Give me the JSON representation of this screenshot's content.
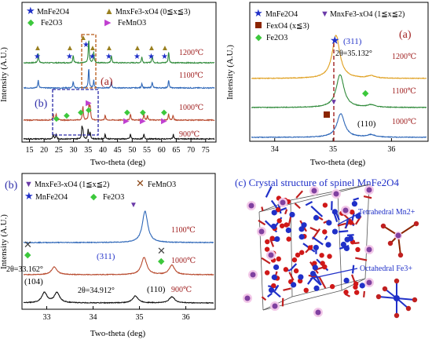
{
  "chart_data": [
    {
      "panel": "top-left",
      "type": "line",
      "xlabel": "Two-theta (deg)",
      "ylabel": "Intensity (A.U.)",
      "xlim": [
        13,
        78
      ],
      "xticks": [
        15,
        20,
        25,
        30,
        35,
        40,
        45,
        50,
        55,
        60,
        65,
        70,
        75
      ],
      "legend": [
        "MnFe2O4",
        "MnxFe3-xO4 (0≦x≦3)",
        "Fe2O3",
        "FeMnO3"
      ],
      "series": [
        {
          "name": "1200℃",
          "color": "#2f8a3a",
          "peaks": [
            18.0,
            29.9,
            35.2,
            36.9,
            42.9,
            53.3,
            56.8,
            62.4
          ]
        },
        {
          "name": "1100℃",
          "color": "#2e67b8",
          "peaks": [
            18.0,
            29.9,
            35.2,
            36.9,
            42.9,
            53.3,
            56.8,
            62.4
          ]
        },
        {
          "name": "1000℃",
          "color": "#b84a2e",
          "peaks": [
            23.1,
            24.1,
            33.2,
            35.3,
            35.7,
            40.8,
            49.4,
            54.0,
            55.2,
            62.4,
            63.9
          ]
        },
        {
          "name": "900℃",
          "color": "#111111",
          "peaks": [
            23.1,
            24.1,
            32.9,
            33.2,
            35.0,
            35.7,
            40.8,
            49.4,
            54.0,
            64.0
          ]
        }
      ],
      "annotations": [
        "(a)",
        "(b)"
      ]
    },
    {
      "panel": "top-right",
      "label": "(a)",
      "type": "line",
      "xlabel": "Two-theta (deg)",
      "ylabel": "Intensity (A.U.)",
      "xlim": [
        33.6,
        36.6
      ],
      "xticks": [
        34,
        35,
        36
      ],
      "legend": [
        "MnFe2O4",
        "MnxFe3-xO4 (1≦x≦2)",
        "FexO4 (x≦3)",
        "Fe2O3"
      ],
      "series": [
        {
          "name": "1200℃",
          "color": "#e0a020",
          "peak": 35.05
        },
        {
          "name": "1100℃",
          "color": "#2f8a3a",
          "peak": 35.12
        },
        {
          "name": "1000℃",
          "color": "#2e67b8",
          "peak": 35.132
        }
      ],
      "annotations": [
        "(311)",
        "2θ=35.132°",
        "(110)"
      ]
    },
    {
      "panel": "bottom-left",
      "label": "(b)",
      "type": "line",
      "xlabel": "Two-theta (deg)",
      "ylabel": "Intensity (A.U.)",
      "xlim": [
        32.5,
        36.6
      ],
      "xticks": [
        33,
        34,
        35,
        36
      ],
      "legend": [
        "MnxFe3-xO4 (1≦x≦2)",
        "FeMnO3",
        "MnFe2O4",
        "Fe2O3"
      ],
      "series": [
        {
          "name": "1100℃",
          "color": "#2e67b8",
          "peak": 35.12
        },
        {
          "name": "1000℃",
          "color": "#b84a2e",
          "peaks": [
            33.162,
            35.1,
            35.7
          ]
        },
        {
          "name": "900℃",
          "color": "#111111",
          "peaks": [
            32.95,
            33.2,
            34.912,
            35.7
          ]
        }
      ],
      "annotations": [
        "2θ=33.162°",
        "(311)",
        "(104)",
        "2θ=34.912°",
        "(110)"
      ]
    }
  ],
  "panel_c": {
    "title": "(c) Crystal structure of spinel MnFe2O4",
    "label_tetra": "Tetrahedral Mn2+",
    "label_octa": "Octahedral Fe3+"
  },
  "colors": {
    "blue": "#2030c8",
    "green": "#3cc83c",
    "gold": "#9a8020",
    "magenta": "#c040d0",
    "brown": "#8b2500",
    "red_text": "#a02020",
    "orange_dash": "#b85a18"
  }
}
